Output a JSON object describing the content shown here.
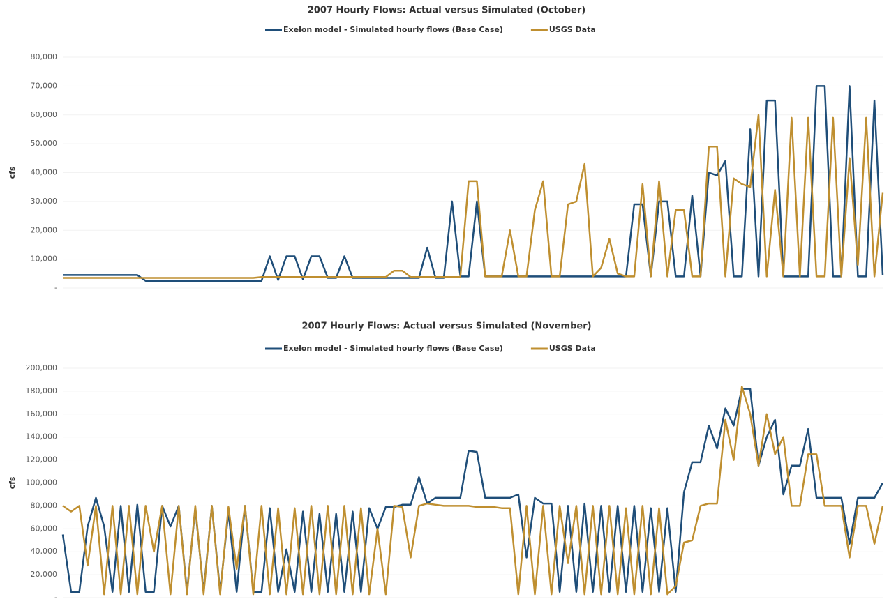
{
  "chart_data": [
    {
      "type": "line",
      "title": "2007 Hourly Flows: Actual versus Simulated (October)",
      "y_label": "cfs",
      "ylim": [
        0,
        80000
      ],
      "yticks": [
        {
          "value": 0,
          "label": "-"
        },
        {
          "value": 10000,
          "label": "10,000"
        },
        {
          "value": 20000,
          "label": "20,000"
        },
        {
          "value": 30000,
          "label": "30,000"
        },
        {
          "value": 40000,
          "label": "40,000"
        },
        {
          "value": 50000,
          "label": "50,000"
        },
        {
          "value": 60000,
          "label": "60,000"
        },
        {
          "value": 70000,
          "label": "70,000"
        },
        {
          "value": 80000,
          "label": "80,000"
        }
      ],
      "series": [
        {
          "name": "Exelon model - Simulated hourly flows (Base Case)",
          "color": "#1f4e79",
          "values": [
            4500,
            4500,
            4500,
            4500,
            4500,
            4500,
            4500,
            4500,
            4500,
            4500,
            2500,
            2500,
            2500,
            2500,
            2500,
            2500,
            2500,
            2500,
            2500,
            2500,
            2500,
            2500,
            2500,
            2500,
            2500,
            11000,
            2800,
            11000,
            11000,
            3000,
            11000,
            11000,
            3500,
            3500,
            11000,
            3500,
            3500,
            3500,
            3500,
            3500,
            3500,
            3500,
            3500,
            3500,
            14000,
            3500,
            3500,
            30000,
            4000,
            4000,
            30000,
            4000,
            4000,
            4000,
            4000,
            4000,
            4000,
            4000,
            4000,
            4000,
            4000,
            4000,
            4000,
            4000,
            4000,
            4000,
            4000,
            4000,
            4000,
            29000,
            29000,
            4000,
            30000,
            30000,
            4000,
            4000,
            32000,
            4000,
            40000,
            39000,
            44000,
            4000,
            4000,
            55000,
            4000,
            65000,
            65000,
            4000,
            4000,
            4000,
            4000,
            70000,
            70000,
            4000,
            4000,
            70000,
            4000,
            4000,
            65000,
            4500
          ]
        },
        {
          "name": "USGS Data",
          "color": "#bf8f30",
          "values": [
            3500,
            3500,
            3500,
            3500,
            3500,
            3500,
            3500,
            3500,
            3500,
            3500,
            3500,
            3500,
            3500,
            3500,
            3500,
            3500,
            3500,
            3500,
            3500,
            3500,
            3500,
            3500,
            3500,
            3500,
            3800,
            3800,
            3800,
            3800,
            3800,
            3800,
            3800,
            3800,
            3800,
            3800,
            3800,
            3800,
            3800,
            3800,
            3800,
            3800,
            6000,
            6000,
            3800,
            3800,
            3800,
            3800,
            3800,
            3800,
            3800,
            37000,
            37000,
            4000,
            4000,
            4000,
            20000,
            4000,
            4000,
            27000,
            37000,
            4000,
            4000,
            29000,
            30000,
            43000,
            4000,
            7000,
            17000,
            5000,
            4000,
            4000,
            36000,
            4000,
            37000,
            4000,
            27000,
            27000,
            4000,
            4000,
            49000,
            49000,
            4000,
            38000,
            36000,
            35000,
            60000,
            4000,
            34000,
            4000,
            59000,
            4000,
            59000,
            4000,
            4000,
            59000,
            4000,
            45000,
            8000,
            59000,
            4000,
            33000
          ]
        }
      ]
    },
    {
      "type": "line",
      "title": "2007 Hourly Flows: Actual versus Simulated (November)",
      "y_label": "cfs",
      "ylim": [
        0,
        200000
      ],
      "yticks": [
        {
          "value": 0,
          "label": "-"
        },
        {
          "value": 20000,
          "label": "20,000"
        },
        {
          "value": 40000,
          "label": "40,000"
        },
        {
          "value": 60000,
          "label": "60,000"
        },
        {
          "value": 80000,
          "label": "80,000"
        },
        {
          "value": 100000,
          "label": "100,000"
        },
        {
          "value": 120000,
          "label": "120,000"
        },
        {
          "value": 140000,
          "label": "140,000"
        },
        {
          "value": 160000,
          "label": "160,000"
        },
        {
          "value": 180000,
          "label": "180,000"
        },
        {
          "value": 200000,
          "label": "200,000"
        }
      ],
      "series": [
        {
          "name": "Exelon model - Simulated hourly flows (Base Case)",
          "color": "#1f4e79",
          "values": [
            55000,
            5000,
            5000,
            62000,
            87000,
            62000,
            5000,
            80000,
            5000,
            81000,
            5000,
            5000,
            80000,
            62000,
            80000,
            5000,
            78000,
            5000,
            80000,
            5000,
            75000,
            5000,
            80000,
            5000,
            5000,
            78000,
            5000,
            42000,
            5000,
            75000,
            5000,
            73000,
            5000,
            73000,
            5000,
            75000,
            5000,
            78000,
            60000,
            79000,
            79000,
            81000,
            81000,
            105000,
            82000,
            87000,
            87000,
            87000,
            87000,
            128000,
            127000,
            87000,
            87000,
            87000,
            87000,
            90000,
            35000,
            87000,
            82000,
            82000,
            5000,
            80000,
            5000,
            82000,
            5000,
            80000,
            5000,
            80000,
            5000,
            80000,
            5000,
            78000,
            5000,
            78000,
            5000,
            92000,
            118000,
            118000,
            150000,
            130000,
            165000,
            150000,
            182000,
            182000,
            115000,
            140000,
            155000,
            90000,
            115000,
            115000,
            147000,
            87000,
            87000,
            87000,
            87000,
            47000,
            87000,
            87000,
            87000,
            100000
          ]
        },
        {
          "name": "USGS Data",
          "color": "#bf8f30",
          "values": [
            80000,
            75000,
            80000,
            28000,
            80000,
            3000,
            80000,
            3000,
            80000,
            3000,
            80000,
            40000,
            80000,
            3000,
            80000,
            3000,
            80000,
            3000,
            80000,
            3000,
            79000,
            25000,
            80000,
            3000,
            80000,
            3000,
            78000,
            3000,
            78000,
            3000,
            80000,
            3000,
            80000,
            3000,
            80000,
            3000,
            78000,
            3000,
            60000,
            3000,
            80000,
            79000,
            35000,
            80000,
            82000,
            81000,
            80000,
            80000,
            80000,
            80000,
            79000,
            79000,
            79000,
            78000,
            78000,
            3000,
            80000,
            3000,
            80000,
            3000,
            80000,
            30000,
            80000,
            3000,
            80000,
            3000,
            80000,
            3000,
            78000,
            3000,
            80000,
            3000,
            78000,
            3000,
            10000,
            48000,
            50000,
            80000,
            82000,
            82000,
            155000,
            120000,
            184000,
            160000,
            115000,
            160000,
            125000,
            140000,
            80000,
            80000,
            125000,
            125000,
            80000,
            80000,
            80000,
            35000,
            80000,
            80000,
            47000,
            80000
          ]
        }
      ]
    }
  ]
}
